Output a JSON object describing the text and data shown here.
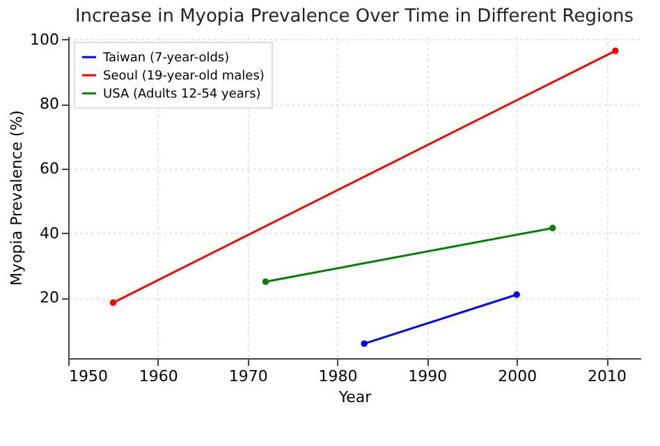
{
  "chart_data": {
    "type": "line",
    "title": "Increase in Myopia Prevalence Over Time in Different Regions",
    "xlabel": "Year",
    "ylabel": "Myopia Prevalence (%)",
    "series": [
      {
        "name": "Taiwan (7-year-olds)",
        "color": "#0000ff",
        "x": [
          1983,
          2000
        ],
        "values": [
          5.8,
          21
        ]
      },
      {
        "name": "Seoul (19-year-old males)",
        "color": "#ff0000",
        "x": [
          1955,
          2011
        ],
        "values": [
          18.5,
          96.5
        ]
      },
      {
        "name": "USA (Adults 12-54 years)",
        "color": "#008000",
        "x": [
          1972,
          2004
        ],
        "values": [
          25,
          41.6
        ]
      }
    ],
    "xlim": [
      1950,
      2013.8
    ],
    "xticks": [
      1950,
      1960,
      1970,
      1980,
      1990,
      2000,
      2010
    ],
    "ylim": [
      1.3,
      101
    ],
    "yticks": [
      20,
      40,
      60,
      80,
      100
    ],
    "grid": true,
    "legend": "top left",
    "marker": "circle",
    "line_style": "solid"
  }
}
